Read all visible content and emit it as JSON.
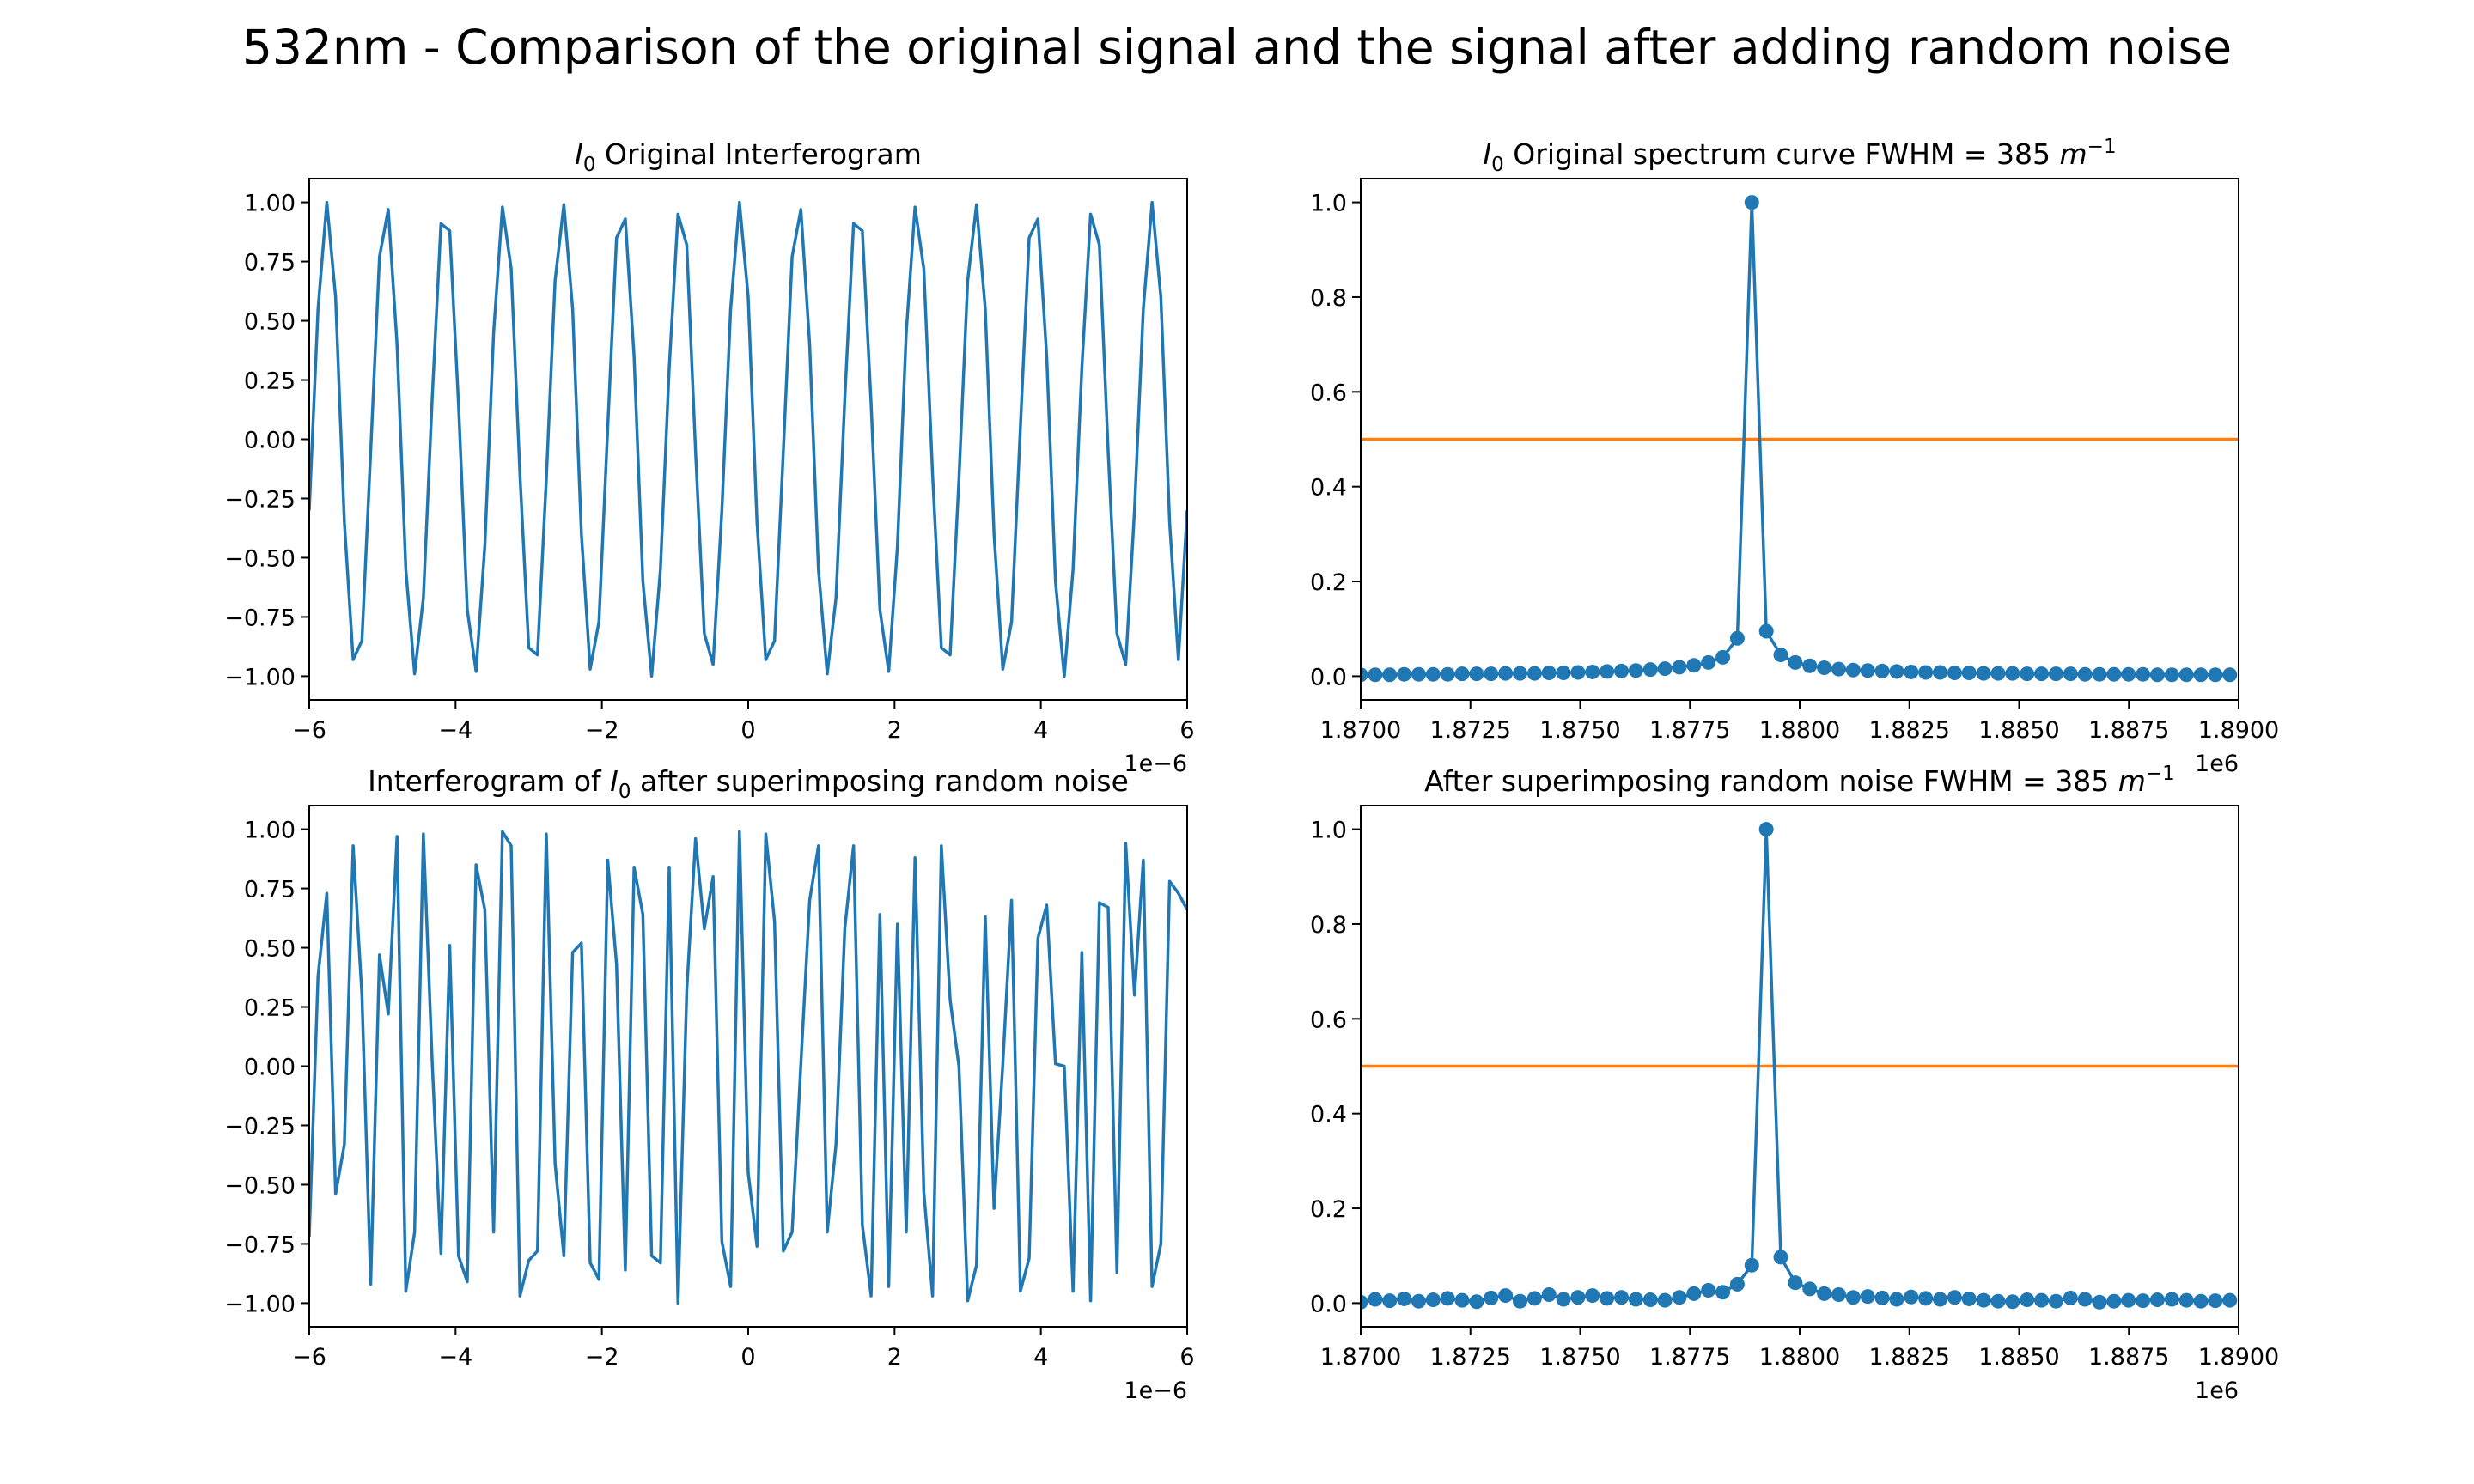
{
  "figure": {
    "title": "532nm - Comparison of the original signal and the signal after adding random noise"
  },
  "colors": {
    "series_line": "#1f77b4",
    "half_max_line": "#ff7f0e",
    "axes": "#000000",
    "background": "#ffffff"
  },
  "chart_data": [
    {
      "id": "original-interferogram",
      "type": "line",
      "title": "I0 Original Interferogram",
      "title_parts": [
        "I",
        "0",
        " Original Interferogram"
      ],
      "xlabel": "",
      "ylabel": "",
      "xlim": [
        -6e-06,
        6e-06
      ],
      "ylim": [
        -1.1,
        1.1
      ],
      "x_scale_label": "1e−6",
      "x_ticks": [
        -6e-06,
        -4e-06,
        -2e-06,
        0,
        2e-06,
        4e-06,
        6e-06
      ],
      "x_tick_labels": [
        "−6",
        "−4",
        "−2",
        "0",
        "2",
        "4",
        "6"
      ],
      "y_ticks": [
        -1.0,
        -0.75,
        -0.5,
        -0.25,
        0.0,
        0.25,
        0.5,
        0.75,
        1.0
      ],
      "y_tick_labels": [
        "−1.00",
        "−0.75",
        "−0.50",
        "−0.25",
        "0.00",
        "0.25",
        "0.50",
        "0.75",
        "1.00"
      ],
      "grid": false,
      "series": [
        {
          "markers": false,
          "x": [
            -6e-06,
            -5.88e-06,
            -5.76e-06,
            -5.64e-06,
            -5.52e-06,
            -5.4e-06,
            -5.28e-06,
            -5.16e-06,
            -5.04e-06,
            -4.92e-06,
            -4.8e-06,
            -4.68e-06,
            -4.56e-06,
            -4.44e-06,
            -4.32e-06,
            -4.2e-06,
            -4.08e-06,
            -3.96e-06,
            -3.84e-06,
            -3.72e-06,
            -3.6e-06,
            -3.48e-06,
            -3.36e-06,
            -3.24e-06,
            -3.12e-06,
            -3e-06,
            -2.88e-06,
            -2.76e-06,
            -2.64e-06,
            -2.52e-06,
            -2.4e-06,
            -2.28e-06,
            -2.16e-06,
            -2.04e-06,
            -1.92e-06,
            -1.8e-06,
            -1.68e-06,
            -1.56e-06,
            -1.44e-06,
            -1.32e-06,
            -1.2e-06,
            -1.08e-06,
            -9.6e-07,
            -8.4e-07,
            -7.2e-07,
            -6e-07,
            -4.8e-07,
            -3.6e-07,
            -2.4e-07,
            -1.2e-07,
            0.0,
            1.2e-07,
            2.4e-07,
            3.6e-07,
            4.8e-07,
            6e-07,
            7.2e-07,
            8.4e-07,
            9.6e-07,
            1.08e-06,
            1.2e-06,
            1.32e-06,
            1.44e-06,
            1.56e-06,
            1.68e-06,
            1.8e-06,
            1.92e-06,
            2.04e-06,
            2.16e-06,
            2.28e-06,
            2.4e-06,
            2.52e-06,
            2.64e-06,
            2.76e-06,
            2.88e-06,
            3e-06,
            3.12e-06,
            3.24e-06,
            3.36e-06,
            3.48e-06,
            3.6e-06,
            3.72e-06,
            3.84e-06,
            3.96e-06,
            4.08e-06,
            4.2e-06,
            4.32e-06,
            4.44e-06,
            4.56e-06,
            4.68e-06,
            4.8e-06,
            4.92e-06,
            5.04e-06,
            5.16e-06,
            5.28e-06,
            5.4e-06,
            5.52e-06,
            5.64e-06,
            5.76e-06,
            5.88e-06,
            6e-06
          ],
          "y": [
            -0.3,
            0.55,
            1.0,
            0.6,
            -0.35,
            -0.93,
            -0.85,
            -0.05,
            0.77,
            0.97,
            0.4,
            -0.55,
            -0.99,
            -0.67,
            0.17,
            0.91,
            0.88,
            0.15,
            -0.72,
            -0.98,
            -0.45,
            0.45,
            0.98,
            0.72,
            -0.15,
            -0.88,
            -0.91,
            -0.17,
            0.67,
            0.99,
            0.55,
            -0.4,
            -0.97,
            -0.77,
            0.05,
            0.85,
            0.93,
            0.35,
            -0.6,
            -1.0,
            -0.55,
            0.3,
            0.95,
            0.82,
            -0.05,
            -0.82,
            -0.95,
            -0.3,
            0.55,
            1.0,
            0.6,
            -0.35,
            -0.93,
            -0.85,
            -0.05,
            0.77,
            0.97,
            0.4,
            -0.55,
            -0.99,
            -0.67,
            0.17,
            0.91,
            0.88,
            0.15,
            -0.72,
            -0.98,
            -0.45,
            0.45,
            0.98,
            0.72,
            -0.15,
            -0.88,
            -0.91,
            -0.17,
            0.67,
            0.99,
            0.55,
            -0.4,
            -0.97,
            -0.77,
            0.05,
            0.85,
            0.93,
            0.35,
            -0.6,
            -1.0,
            -0.55,
            0.3,
            0.95,
            0.82,
            -0.05,
            -0.82,
            -0.95,
            -0.3,
            0.55,
            1.0,
            0.6,
            -0.35,
            -0.93,
            -0.3
          ]
        }
      ]
    },
    {
      "id": "original-spectrum",
      "type": "line",
      "title": "I0 Original spectrum curve FWHM = 385 m^-1",
      "title_parts": [
        "I",
        "0",
        " Original spectrum curve FWHM = 385 ",
        "m",
        "−1"
      ],
      "xlabel": "",
      "ylabel": "",
      "xlim": [
        1870000,
        1890000
      ],
      "ylim": [
        -0.05,
        1.05
      ],
      "x_scale_label": "1e6",
      "x_ticks": [
        1870000,
        1872500,
        1875000,
        1877500,
        1880000,
        1882500,
        1885000,
        1887500,
        1890000
      ],
      "x_tick_labels": [
        "1.8700",
        "1.8725",
        "1.8750",
        "1.8775",
        "1.8800",
        "1.8825",
        "1.8850",
        "1.8875",
        "1.8900"
      ],
      "y_ticks": [
        0.0,
        0.2,
        0.4,
        0.6,
        0.8,
        1.0
      ],
      "y_tick_labels": [
        "0.0",
        "0.2",
        "0.4",
        "0.6",
        "0.8",
        "1.0"
      ],
      "grid": false,
      "half_max": 0.5,
      "series": [
        {
          "markers": true,
          "x": [
            1870000,
            1870330,
            1870660,
            1870990,
            1871320,
            1871650,
            1871980,
            1872310,
            1872640,
            1872970,
            1873300,
            1873630,
            1873960,
            1874290,
            1874620,
            1874950,
            1875280,
            1875610,
            1875940,
            1876270,
            1876600,
            1876930,
            1877260,
            1877590,
            1877920,
            1878250,
            1878580,
            1878910,
            1879240,
            1879570,
            1879900,
            1880230,
            1880560,
            1880890,
            1881220,
            1881550,
            1881880,
            1882210,
            1882540,
            1882870,
            1883200,
            1883530,
            1883860,
            1884190,
            1884520,
            1884850,
            1885180,
            1885510,
            1885840,
            1886170,
            1886500,
            1886830,
            1887160,
            1887490,
            1887820,
            1888150,
            1888480,
            1888810,
            1889140,
            1889470,
            1889800
          ],
          "y": [
            0.003,
            0.003,
            0.003,
            0.004,
            0.004,
            0.004,
            0.004,
            0.005,
            0.005,
            0.005,
            0.006,
            0.006,
            0.006,
            0.007,
            0.007,
            0.008,
            0.009,
            0.01,
            0.011,
            0.012,
            0.014,
            0.016,
            0.019,
            0.023,
            0.029,
            0.04,
            0.08,
            1.0,
            0.095,
            0.045,
            0.029,
            0.022,
            0.018,
            0.015,
            0.013,
            0.012,
            0.011,
            0.01,
            0.009,
            0.008,
            0.008,
            0.007,
            0.007,
            0.006,
            0.006,
            0.006,
            0.005,
            0.005,
            0.005,
            0.005,
            0.004,
            0.004,
            0.004,
            0.004,
            0.004,
            0.003,
            0.003,
            0.003,
            0.003,
            0.003,
            0.003
          ]
        }
      ]
    },
    {
      "id": "noisy-interferogram",
      "type": "line",
      "title": "Interferogram of I0 after superimposing random noise",
      "title_parts": [
        "Interferogram of ",
        "I",
        "0",
        " after superimposing random noise"
      ],
      "xlabel": "",
      "ylabel": "",
      "xlim": [
        -6e-06,
        6e-06
      ],
      "ylim": [
        -1.1,
        1.1
      ],
      "x_scale_label": "1e−6",
      "x_ticks": [
        -6e-06,
        -4e-06,
        -2e-06,
        0,
        2e-06,
        4e-06,
        6e-06
      ],
      "x_tick_labels": [
        "−6",
        "−4",
        "−2",
        "0",
        "2",
        "4",
        "6"
      ],
      "y_ticks": [
        -1.0,
        -0.75,
        -0.5,
        -0.25,
        0.0,
        0.25,
        0.5,
        0.75,
        1.0
      ],
      "y_tick_labels": [
        "−1.00",
        "−0.75",
        "−0.50",
        "−0.25",
        "0.00",
        "0.25",
        "0.50",
        "0.75",
        "1.00"
      ],
      "grid": false,
      "series": [
        {
          "markers": false,
          "x": [
            -6e-06,
            -5.88e-06,
            -5.76e-06,
            -5.64e-06,
            -5.52e-06,
            -5.4e-06,
            -5.28e-06,
            -5.16e-06,
            -5.04e-06,
            -4.92e-06,
            -4.8e-06,
            -4.68e-06,
            -4.56e-06,
            -4.44e-06,
            -4.32e-06,
            -4.2e-06,
            -4.08e-06,
            -3.96e-06,
            -3.84e-06,
            -3.72e-06,
            -3.6e-06,
            -3.48e-06,
            -3.36e-06,
            -3.24e-06,
            -3.12e-06,
            -3e-06,
            -2.88e-06,
            -2.76e-06,
            -2.64e-06,
            -2.52e-06,
            -2.4e-06,
            -2.28e-06,
            -2.16e-06,
            -2.04e-06,
            -1.92e-06,
            -1.8e-06,
            -1.68e-06,
            -1.56e-06,
            -1.44e-06,
            -1.32e-06,
            -1.2e-06,
            -1.08e-06,
            -9.6e-07,
            -8.4e-07,
            -7.2e-07,
            -6e-07,
            -4.8e-07,
            -3.6e-07,
            -2.4e-07,
            -1.2e-07,
            0.0,
            1.2e-07,
            2.4e-07,
            3.6e-07,
            4.8e-07,
            6e-07,
            7.2e-07,
            8.4e-07,
            9.6e-07,
            1.08e-06,
            1.2e-06,
            1.32e-06,
            1.44e-06,
            1.56e-06,
            1.68e-06,
            1.8e-06,
            1.92e-06,
            2.04e-06,
            2.16e-06,
            2.28e-06,
            2.4e-06,
            2.52e-06,
            2.64e-06,
            2.76e-06,
            2.88e-06,
            3e-06,
            3.12e-06,
            3.24e-06,
            3.36e-06,
            3.48e-06,
            3.6e-06,
            3.72e-06,
            3.84e-06,
            3.96e-06,
            4.08e-06,
            4.2e-06,
            4.32e-06,
            4.44e-06,
            4.56e-06,
            4.68e-06,
            4.8e-06,
            4.92e-06,
            5.04e-06,
            5.16e-06,
            5.28e-06,
            5.4e-06,
            5.52e-06,
            5.64e-06,
            5.76e-06,
            5.88e-06,
            6e-06
          ],
          "y": [
            -0.72,
            0.38,
            0.73,
            -0.54,
            -0.33,
            0.93,
            0.3,
            -0.92,
            0.47,
            0.22,
            0.97,
            -0.95,
            -0.7,
            0.98,
            0.02,
            -0.79,
            0.51,
            -0.8,
            -0.91,
            0.85,
            0.66,
            -0.7,
            0.99,
            0.93,
            -0.97,
            -0.82,
            -0.78,
            0.98,
            -0.41,
            -0.8,
            0.48,
            0.52,
            -0.83,
            -0.9,
            0.87,
            0.43,
            -0.86,
            0.84,
            0.64,
            -0.8,
            -0.83,
            0.84,
            -1.0,
            0.32,
            0.96,
            0.58,
            0.8,
            -0.74,
            -0.93,
            0.99,
            -0.45,
            -0.76,
            0.98,
            0.61,
            -0.78,
            -0.7,
            0.01,
            0.7,
            0.93,
            -0.7,
            -0.33,
            0.58,
            0.93,
            -0.67,
            -0.97,
            0.64,
            -0.93,
            0.6,
            -0.7,
            0.88,
            -0.53,
            -0.97,
            0.93,
            0.28,
            0.0,
            -0.99,
            -0.84,
            0.63,
            -0.6,
            0.01,
            0.7,
            -0.95,
            -0.81,
            0.54,
            0.68,
            0.01,
            0.0,
            -0.95,
            0.48,
            -0.99,
            0.69,
            0.67,
            -0.87,
            0.94,
            0.3,
            0.87,
            -0.93,
            -0.75,
            0.78,
            0.73,
            0.66
          ]
        }
      ]
    },
    {
      "id": "noisy-spectrum",
      "type": "line",
      "title": "After superimposing random noise FWHM = 385 m^-1",
      "title_parts": [
        "After superimposing random noise FWHM = 385 ",
        "m",
        "−1"
      ],
      "xlabel": "",
      "ylabel": "",
      "xlim": [
        1870000,
        1890000
      ],
      "ylim": [
        -0.05,
        1.05
      ],
      "x_scale_label": "1e6",
      "x_ticks": [
        1870000,
        1872500,
        1875000,
        1877500,
        1880000,
        1882500,
        1885000,
        1887500,
        1890000
      ],
      "x_tick_labels": [
        "1.8700",
        "1.8725",
        "1.8750",
        "1.8775",
        "1.8800",
        "1.8825",
        "1.8850",
        "1.8875",
        "1.8900"
      ],
      "y_ticks": [
        0.0,
        0.2,
        0.4,
        0.6,
        0.8,
        1.0
      ],
      "y_tick_labels": [
        "0.0",
        "0.2",
        "0.4",
        "0.6",
        "0.8",
        "1.0"
      ],
      "grid": false,
      "half_max": 0.5,
      "series": [
        {
          "markers": true,
          "x": [
            1870000,
            1870330,
            1870660,
            1870990,
            1871320,
            1871650,
            1871980,
            1872310,
            1872640,
            1872970,
            1873300,
            1873630,
            1873960,
            1874290,
            1874620,
            1874950,
            1875280,
            1875610,
            1875940,
            1876270,
            1876600,
            1876930,
            1877260,
            1877590,
            1877920,
            1878250,
            1878580,
            1878910,
            1879240,
            1879570,
            1879900,
            1880230,
            1880560,
            1880890,
            1881220,
            1881550,
            1881880,
            1882210,
            1882540,
            1882870,
            1883200,
            1883530,
            1883860,
            1884190,
            1884520,
            1884850,
            1885180,
            1885510,
            1885840,
            1886170,
            1886500,
            1886830,
            1887160,
            1887490,
            1887820,
            1888150,
            1888480,
            1888810,
            1889140,
            1889470,
            1889800
          ],
          "y": [
            0.002,
            0.008,
            0.005,
            0.009,
            0.004,
            0.007,
            0.01,
            0.006,
            0.003,
            0.011,
            0.016,
            0.004,
            0.01,
            0.018,
            0.008,
            0.012,
            0.016,
            0.01,
            0.012,
            0.008,
            0.007,
            0.006,
            0.012,
            0.02,
            0.027,
            0.023,
            0.04,
            0.08,
            1.0,
            0.097,
            0.043,
            0.03,
            0.02,
            0.018,
            0.012,
            0.014,
            0.011,
            0.008,
            0.013,
            0.01,
            0.008,
            0.012,
            0.009,
            0.006,
            0.004,
            0.003,
            0.007,
            0.006,
            0.004,
            0.011,
            0.008,
            0.002,
            0.004,
            0.006,
            0.005,
            0.007,
            0.008,
            0.006,
            0.004,
            0.005,
            0.006
          ]
        }
      ]
    }
  ]
}
